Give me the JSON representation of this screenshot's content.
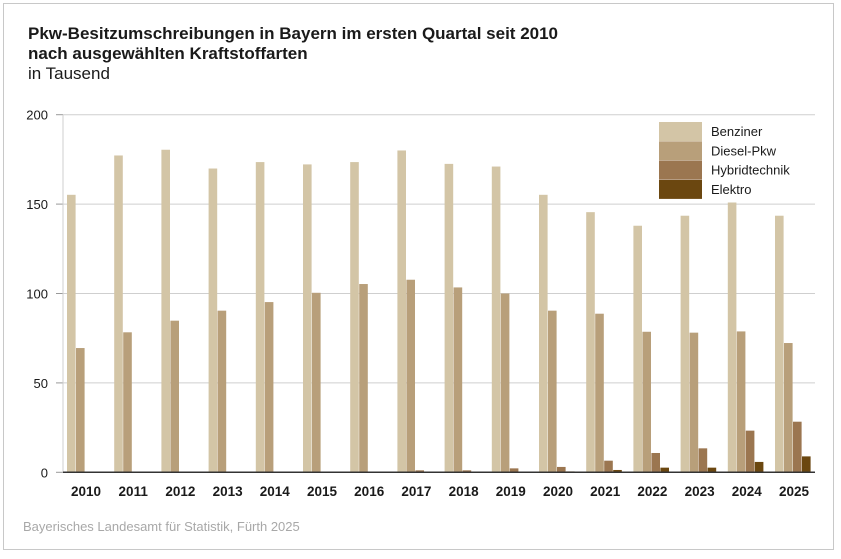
{
  "chart_data": {
    "type": "bar",
    "title": "Pkw-Besitzumschreibungen in Bayern im ersten Quartal seit 2010",
    "title_line2": "nach ausgewählten Kraftstoffarten",
    "subtitle": "in Tausend",
    "source": "Bayerisches Landesamt für Statistik, Fürth 2025",
    "xlabel": "",
    "ylabel": "in Tausend",
    "ylim": [
      0,
      200
    ],
    "yticks": [
      "0",
      "50",
      "100",
      "150",
      "200"
    ],
    "grid": true,
    "legend_position": "top-right",
    "categories": [
      "2010",
      "2011",
      "2012",
      "2013",
      "2014",
      "2015",
      "2016",
      "2017",
      "2018",
      "2019",
      "2020",
      "2021",
      "2022",
      "2023",
      "2024",
      "2025"
    ],
    "series": [
      {
        "name": "Benziner",
        "color": "#d3c5a6",
        "values": [
          155.2,
          177.2,
          180.4,
          169.9,
          173.5,
          172.2,
          173.5,
          180.0,
          172.5,
          171.0,
          155.2,
          145.5,
          137.9,
          143.5,
          150.9,
          143.5
        ]
      },
      {
        "name": "Diesel-Pkw",
        "color": "#b89f7a",
        "values": [
          69.5,
          78.3,
          84.8,
          90.4,
          95.2,
          100.4,
          105.3,
          107.7,
          103.4,
          100.0,
          90.4,
          88.7,
          78.6,
          78.1,
          78.8,
          72.3
        ]
      },
      {
        "name": "Hybridtechnik",
        "color": "#9b7650",
        "values": [
          0.1,
          0.1,
          0.1,
          0.1,
          0.1,
          0.2,
          0.3,
          1.1,
          1.1,
          2.2,
          3.0,
          6.5,
          10.8,
          13.4,
          23.3,
          28.3
        ]
      },
      {
        "name": "Elektro",
        "color": "#6b4710",
        "values": [
          0,
          0,
          0,
          0,
          0,
          0,
          0,
          0.1,
          0.1,
          0.2,
          0.5,
          1.3,
          2.6,
          2.6,
          5.8,
          8.9
        ]
      }
    ]
  }
}
